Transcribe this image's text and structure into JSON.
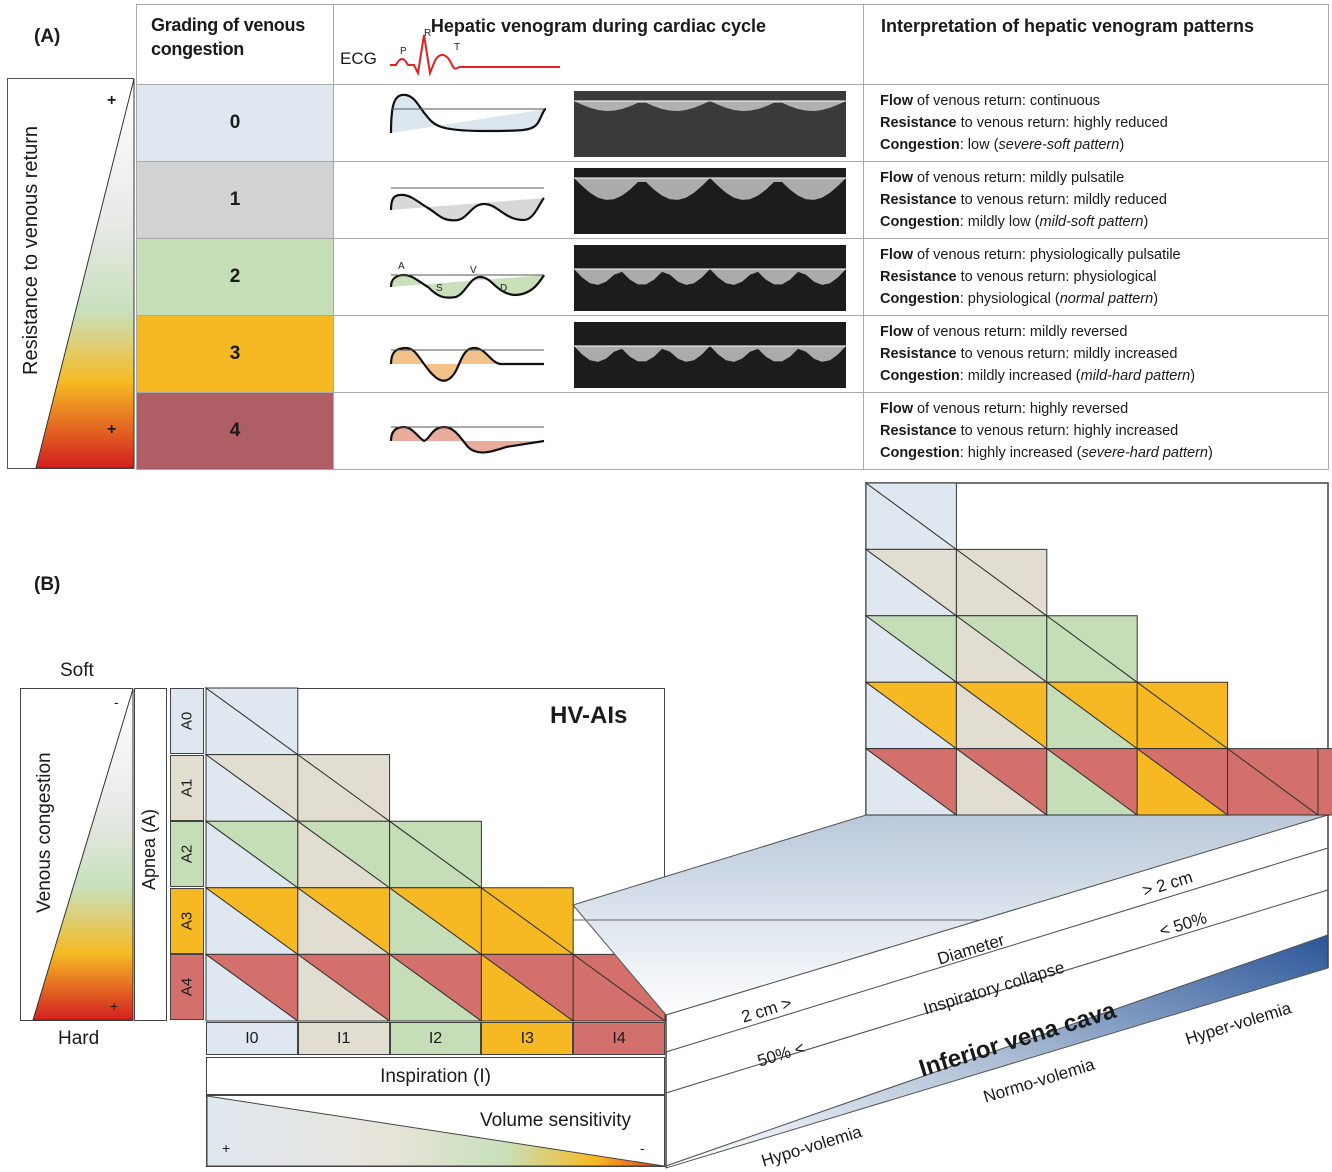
{
  "panel_a": {
    "label": "(A)",
    "header": {
      "grading": "Grading of venous congestion",
      "venogram": "Hepatic venogram during cardiac cycle",
      "ecg_label": "ECG",
      "ecg_waves": [
        "P",
        "R",
        "T"
      ],
      "interpretation": "Interpretation of hepatic venogram patterns"
    },
    "side_axis": {
      "label": "Resistance to venous return",
      "top_sign": "+",
      "bottom_sign": "+"
    },
    "wave_labels": [
      "A",
      "S",
      "V",
      "D"
    ],
    "rows": [
      {
        "grade": "0",
        "color": "#dfe8f0",
        "wave_fill": "#dbe6ee",
        "flow": "continuous",
        "resistance": "highly reduced",
        "congestion": "low",
        "pattern": "severe-soft pattern",
        "has_image": true
      },
      {
        "grade": "1",
        "color": "#d2d2d2",
        "wave_fill": "#d8d8d8",
        "flow": "mildly pulsatile",
        "resistance": "mildly reduced",
        "congestion": "mildly low",
        "pattern": "mild-soft pattern",
        "has_image": true
      },
      {
        "grade": "2",
        "color": "#c6deb8",
        "wave_fill": "#c9e0bb",
        "flow": "physiologically pulsatile",
        "resistance": "physiological",
        "congestion": "physiological",
        "pattern": "normal pattern",
        "has_image": true
      },
      {
        "grade": "3",
        "color": "#f6b923",
        "wave_fill": "#f3c28a",
        "flow": "mildly reversed",
        "resistance": "mildly increased",
        "congestion": "mildly increased",
        "pattern": "mild-hard pattern",
        "has_image": true
      },
      {
        "grade": "4",
        "color": "#b05e66",
        "wave_fill": "#e9ab9c",
        "flow": "highly reversed",
        "resistance": "highly increased",
        "congestion": "highly increased",
        "pattern": "severe-hard pattern",
        "has_image": false
      }
    ],
    "terms": {
      "flow": "Flow",
      "flow_suffix": " of venous return: ",
      "resistance": "Resistance",
      "resistance_suffix": " to venous return: ",
      "congestion": "Congestion",
      "congestion_suffix": ": "
    }
  },
  "panel_b": {
    "label": "(B)",
    "title": "HV-AIs",
    "soft": "Soft",
    "hard": "Hard",
    "venous_congestion": "Venous congestion",
    "vc_minus": "-",
    "vc_plus": "+",
    "apnea_label": "Apnea (A)",
    "apnea_levels": [
      "A0",
      "A1",
      "A2",
      "A3",
      "A4"
    ],
    "inspiration_levels": [
      "I0",
      "I1",
      "I2",
      "I3",
      "I4"
    ],
    "inspiration_label": "Inspiration (I)",
    "volume_sensitivity": "Volume sensitivity",
    "vol_plus": "+",
    "vol_minus": "-",
    "level_colors": [
      "#dfe8f0",
      "#e1ddd0",
      "#c6deb8",
      "#f6b923",
      "#d3706b"
    ],
    "ivc": {
      "title": "Inferior vena cava",
      "diameter": "Diameter",
      "diameter_low": "2 cm >",
      "diameter_high": "> 2 cm",
      "collapse": "Inspiratory collapse",
      "collapse_low": "50% <",
      "collapse_high": "< 50%",
      "hypo": "Hypo-volemia",
      "normo": "Normo-volemia",
      "hyper": "Hyper-volemia"
    }
  }
}
